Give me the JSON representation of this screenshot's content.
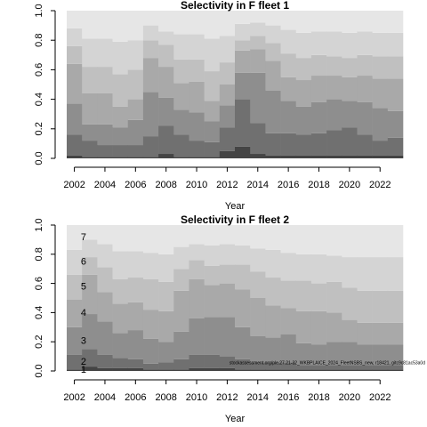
{
  "chart_data": [
    {
      "type": "stacked_step_area",
      "title": "Selectivity in F fleet 1",
      "xlabel": "Year",
      "x": [
        2002,
        2003,
        2004,
        2005,
        2006,
        2007,
        2008,
        2009,
        2010,
        2011,
        2012,
        2013,
        2014,
        2015,
        2016,
        2017,
        2018,
        2019,
        2020,
        2021,
        2022,
        2023
      ],
      "xlim": [
        2001.5,
        2023.5
      ],
      "xticks": [
        2002,
        2004,
        2006,
        2008,
        2010,
        2012,
        2014,
        2016,
        2018,
        2020,
        2022
      ],
      "ylim": [
        0,
        1
      ],
      "yticks": [
        {
          "value": 0,
          "label": "0.0"
        },
        0.2,
        0.4,
        0.6,
        0.8,
        {
          "value": 1,
          "label": "1.0"
        }
      ],
      "series": [
        {
          "color": "#444444",
          "values": [
            0.02,
            0.01,
            0.01,
            0.01,
            0.01,
            0.01,
            0.03,
            0.01,
            0.01,
            0.01,
            0.05,
            0.08,
            0.03,
            0.02,
            0.02,
            0.02,
            0.02,
            0.02,
            0.02,
            0.02,
            0.02,
            0.02
          ]
        },
        {
          "color": "#707070",
          "values": [
            0.14,
            0.11,
            0.08,
            0.08,
            0.08,
            0.14,
            0.19,
            0.15,
            0.11,
            0.1,
            0.16,
            0.32,
            0.21,
            0.15,
            0.15,
            0.14,
            0.15,
            0.17,
            0.19,
            0.14,
            0.1,
            0.12
          ]
        },
        {
          "color": "#8e8e8e",
          "values": [
            0.21,
            0.11,
            0.14,
            0.12,
            0.17,
            0.3,
            0.19,
            0.17,
            0.19,
            0.14,
            0.15,
            0.18,
            0.34,
            0.29,
            0.22,
            0.19,
            0.21,
            0.21,
            0.18,
            0.22,
            0.22,
            0.18
          ]
        },
        {
          "color": "#a9a9a9",
          "values": [
            0.27,
            0.21,
            0.21,
            0.14,
            0.14,
            0.23,
            0.21,
            0.18,
            0.21,
            0.14,
            0.14,
            0.15,
            0.16,
            0.2,
            0.16,
            0.18,
            0.18,
            0.16,
            0.16,
            0.18,
            0.2,
            0.22
          ]
        },
        {
          "color": "#c0c0c0",
          "values": [
            0.12,
            0.18,
            0.18,
            0.22,
            0.2,
            0.12,
            0.15,
            0.16,
            0.15,
            0.2,
            0.15,
            0.07,
            0.09,
            0.12,
            0.16,
            0.15,
            0.14,
            0.13,
            0.13,
            0.14,
            0.15,
            0.15
          ]
        },
        {
          "color": "#d4d4d4",
          "values": [
            0.12,
            0.19,
            0.19,
            0.22,
            0.2,
            0.1,
            0.09,
            0.17,
            0.17,
            0.22,
            0.18,
            0.11,
            0.09,
            0.12,
            0.16,
            0.17,
            0.16,
            0.17,
            0.17,
            0.16,
            0.16,
            0.16
          ]
        },
        {
          "color": "#e6e6e6",
          "values": [
            0.12,
            0.19,
            0.19,
            0.21,
            0.2,
            0.1,
            0.14,
            0.16,
            0.16,
            0.19,
            0.17,
            0.09,
            0.08,
            0.1,
            0.13,
            0.15,
            0.14,
            0.14,
            0.15,
            0.14,
            0.15,
            0.15
          ]
        }
      ]
    },
    {
      "type": "stacked_step_area",
      "title": "Selectivity in F fleet 2",
      "xlabel": "Year",
      "x": [
        2002,
        2003,
        2004,
        2005,
        2006,
        2007,
        2008,
        2009,
        2010,
        2011,
        2012,
        2013,
        2014,
        2015,
        2016,
        2017,
        2018,
        2019,
        2020,
        2021,
        2022,
        2023
      ],
      "xlim": [
        2001.5,
        2023.5
      ],
      "xticks": [
        2002,
        2004,
        2006,
        2008,
        2010,
        2012,
        2014,
        2016,
        2018,
        2020,
        2022
      ],
      "ylim": [
        0,
        1
      ],
      "yticks": [
        {
          "value": 0,
          "label": "0.0"
        },
        0.2,
        0.4,
        0.6,
        0.8,
        {
          "value": 1,
          "label": "1.0"
        }
      ],
      "annotation": "stockassessment.org/ple.27.21-32_WKBPLAICE_2024_FleetNSBS_new, r18421, gitc9c81ac53a0d",
      "series": [
        {
          "name": "1",
          "color": "#444444",
          "values": [
            0.01,
            0.03,
            0.02,
            0.02,
            0.02,
            0.01,
            0.01,
            0.01,
            0.02,
            0.02,
            0.02,
            0.01,
            0.01,
            0.01,
            0.01,
            0.01,
            0.01,
            0.01,
            0.01,
            0.01,
            0.01,
            0.01
          ]
        },
        {
          "name": "2",
          "color": "#707070",
          "values": [
            0.1,
            0.12,
            0.09,
            0.07,
            0.06,
            0.04,
            0.05,
            0.07,
            0.09,
            0.09,
            0.08,
            0.07,
            0.05,
            0.05,
            0.05,
            0.03,
            0.03,
            0.03,
            0.03,
            0.03,
            0.03,
            0.03
          ]
        },
        {
          "name": "3",
          "color": "#8e8e8e",
          "values": [
            0.19,
            0.24,
            0.23,
            0.17,
            0.2,
            0.17,
            0.14,
            0.19,
            0.25,
            0.26,
            0.27,
            0.22,
            0.18,
            0.17,
            0.19,
            0.15,
            0.14,
            0.16,
            0.16,
            0.14,
            0.14,
            0.14
          ]
        },
        {
          "name": "4",
          "color": "#a9a9a9",
          "values": [
            0.19,
            0.27,
            0.2,
            0.2,
            0.19,
            0.2,
            0.21,
            0.28,
            0.27,
            0.22,
            0.23,
            0.26,
            0.26,
            0.22,
            0.18,
            0.22,
            0.23,
            0.2,
            0.15,
            0.15,
            0.15,
            0.15
          ]
        },
        {
          "name": "5",
          "color": "#c0c0c0",
          "values": [
            0.17,
            0.12,
            0.17,
            0.17,
            0.17,
            0.21,
            0.2,
            0.15,
            0.13,
            0.13,
            0.13,
            0.17,
            0.18,
            0.19,
            0.19,
            0.21,
            0.19,
            0.21,
            0.22,
            0.22,
            0.22,
            0.22
          ]
        },
        {
          "name": "6",
          "color": "#d4d4d4",
          "values": [
            0.17,
            0.12,
            0.16,
            0.19,
            0.18,
            0.18,
            0.19,
            0.15,
            0.11,
            0.14,
            0.14,
            0.13,
            0.16,
            0.19,
            0.19,
            0.18,
            0.2,
            0.18,
            0.21,
            0.23,
            0.23,
            0.23
          ]
        },
        {
          "name": "7",
          "color": "#e6e6e6",
          "values": [
            0.17,
            0.1,
            0.13,
            0.18,
            0.18,
            0.19,
            0.2,
            0.15,
            0.13,
            0.14,
            0.13,
            0.14,
            0.16,
            0.17,
            0.19,
            0.2,
            0.2,
            0.21,
            0.22,
            0.22,
            0.22,
            0.22
          ]
        }
      ]
    }
  ]
}
